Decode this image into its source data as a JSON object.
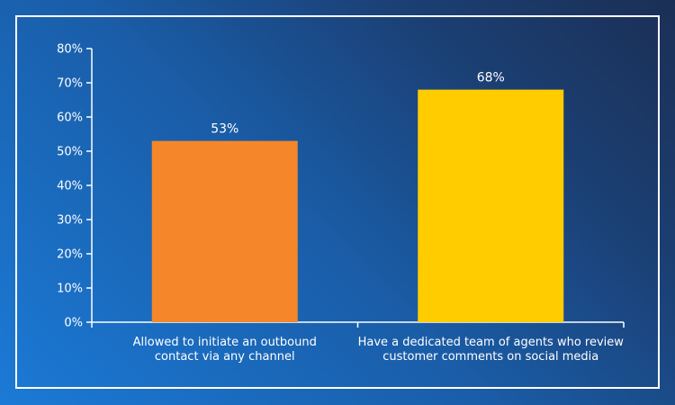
{
  "chart_data": {
    "type": "bar",
    "categories": [
      [
        "Allowed to initiate an outbound",
        "contact via any channel"
      ],
      [
        "Have a dedicated team of agents who review",
        "customer comments on social media"
      ]
    ],
    "values": [
      53,
      68
    ],
    "value_labels": [
      "53%",
      "68%"
    ],
    "bar_colors": [
      "#f5872a",
      "#ffcc00"
    ],
    "ylim": [
      0,
      80
    ],
    "yticks": [
      "0%",
      "10%",
      "20%",
      "30%",
      "40%",
      "50%",
      "60%",
      "70%",
      "80%"
    ],
    "grid": false,
    "legend": "none"
  }
}
